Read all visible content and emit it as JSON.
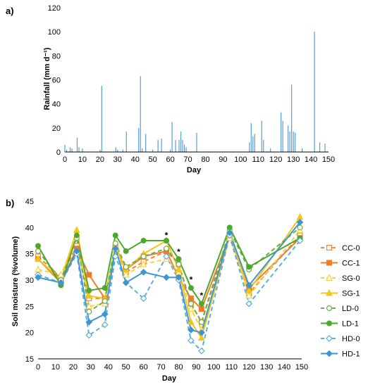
{
  "chart_data": [
    {
      "id": "rain",
      "type": "bar",
      "panel_label": "a)",
      "xlabel": "Day",
      "ylabel": "Rainfall (mm d⁻¹)",
      "xlim": [
        0,
        150
      ],
      "ylim": [
        0,
        120
      ],
      "xticks": [
        0,
        10,
        20,
        30,
        40,
        50,
        60,
        70,
        80,
        90,
        100,
        110,
        120,
        130,
        140,
        150
      ],
      "yticks": [
        0,
        20,
        40,
        60,
        80,
        100,
        120
      ],
      "bar_color": "#5b9bd5",
      "x": [
        0,
        1,
        3,
        4,
        7,
        8,
        10,
        20,
        21,
        29,
        30,
        33,
        35,
        42,
        43,
        44,
        46,
        50,
        53,
        55,
        60,
        61,
        63,
        65,
        66,
        67,
        68,
        69,
        75,
        105,
        106,
        107,
        108,
        112,
        113,
        117,
        123,
        124,
        127,
        128,
        129,
        130,
        131,
        135,
        142,
        145,
        148
      ],
      "values": [
        6,
        2,
        4,
        3,
        12,
        4,
        3,
        2,
        55,
        4,
        2,
        2,
        17,
        20,
        63,
        3,
        15,
        2,
        10,
        11,
        2,
        25,
        10,
        10,
        17,
        10,
        6,
        4,
        16,
        8,
        24,
        13,
        15,
        26,
        10,
        3,
        33,
        26,
        22,
        17,
        56,
        17,
        16,
        3,
        100,
        8,
        7
      ]
    },
    {
      "id": "soil",
      "type": "line",
      "panel_label": "b)",
      "xlabel": "Day",
      "ylabel": "Soil moisture (%volume)",
      "xlim": [
        0,
        150
      ],
      "ylim": [
        15,
        45
      ],
      "xticks": [
        0,
        10,
        20,
        30,
        40,
        50,
        60,
        70,
        80,
        90,
        100,
        110,
        120,
        130,
        140,
        150
      ],
      "yticks": [
        15,
        20,
        25,
        30,
        35,
        40,
        45
      ],
      "x": [
        0,
        13,
        22,
        29,
        38,
        44,
        50,
        60,
        73,
        80,
        87,
        93,
        109,
        120,
        149
      ],
      "series": [
        {
          "name": "CC-0",
          "color": "#f08a3a",
          "dashed": true,
          "marker": "square-open",
          "values": [
            34.5,
            30.5,
            36.5,
            26.5,
            26.5,
            36.5,
            31.5,
            33.5,
            35.5,
            33.0,
            25.5,
            22.0,
            38.5,
            27.5,
            38.5
          ]
        },
        {
          "name": "CC-1",
          "color": "#f07c2a",
          "dashed": false,
          "marker": "square",
          "values": [
            34.0,
            29.5,
            36.0,
            31.0,
            26.5,
            36.0,
            32.0,
            34.5,
            35.5,
            30.5,
            26.5,
            24.5,
            38.5,
            28.5,
            38.0
          ]
        },
        {
          "name": "SG-0",
          "color": "#f5d140",
          "dashed": true,
          "marker": "triangle-open",
          "values": [
            32.0,
            31.0,
            38.0,
            25.0,
            25.5,
            36.0,
            31.0,
            33.0,
            34.0,
            31.5,
            24.5,
            20.5,
            38.0,
            27.0,
            39.5
          ]
        },
        {
          "name": "SG-1",
          "color": "#f5c518",
          "dashed": false,
          "marker": "triangle",
          "values": [
            34.0,
            30.0,
            39.5,
            27.0,
            26.5,
            36.5,
            32.0,
            35.0,
            37.5,
            32.0,
            22.0,
            19.0,
            38.5,
            28.0,
            42.0
          ]
        },
        {
          "name": "LD-0",
          "color": "#70ad47",
          "dashed": true,
          "marker": "circle-open",
          "values": [
            35.5,
            30.0,
            38.0,
            24.0,
            26.0,
            37.0,
            32.5,
            34.5,
            36.0,
            33.0,
            25.5,
            22.0,
            39.5,
            32.0,
            40.0
          ]
        },
        {
          "name": "LD-1",
          "color": "#4ea72e",
          "dashed": false,
          "marker": "circle",
          "values": [
            36.5,
            29.0,
            38.5,
            28.0,
            28.5,
            38.5,
            35.5,
            37.5,
            37.5,
            34.0,
            28.5,
            25.5,
            40.0,
            32.5,
            38.0
          ]
        },
        {
          "name": "HD-0",
          "color": "#5aaee0",
          "dashed": true,
          "marker": "diamond-open",
          "values": [
            31.0,
            29.5,
            35.0,
            19.5,
            21.5,
            34.5,
            29.5,
            26.5,
            34.5,
            30.0,
            18.5,
            16.5,
            38.5,
            25.5,
            37.5
          ]
        },
        {
          "name": "HD-1",
          "color": "#3d96d4",
          "dashed": false,
          "marker": "diamond",
          "values": [
            30.5,
            29.5,
            35.5,
            22.0,
            23.5,
            36.0,
            29.5,
            31.5,
            30.5,
            30.5,
            20.5,
            20.0,
            39.0,
            29.0,
            41.0
          ]
        }
      ],
      "annotations": [
        {
          "text": "*",
          "x": 73,
          "y": 38.0
        },
        {
          "text": "*",
          "x": 80,
          "y": 34.8
        },
        {
          "text": "*",
          "x": 87,
          "y": 29.5
        },
        {
          "text": "*",
          "x": 93,
          "y": 26.5
        }
      ],
      "legend_position": "right"
    }
  ]
}
